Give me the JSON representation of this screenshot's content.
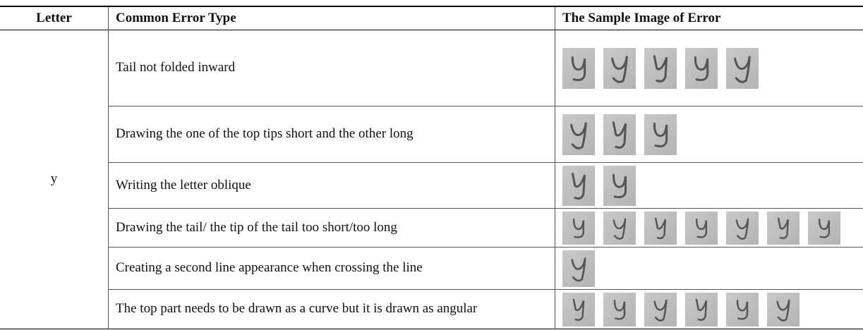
{
  "table": {
    "headers": [
      "Letter",
      "Common Error Type",
      "The Sample Image of Error"
    ],
    "letter": "y",
    "rows": [
      "Tail not folded inward",
      "Drawing the one of the top tips short and the other long",
      "Writing the letter oblique",
      "Drawing the tail/ the tip of the tail too short/too long",
      "Creating a second line appearance when crossing the line",
      "The top part needs to be drawn as a curve but it is drawn as angular"
    ]
  }
}
